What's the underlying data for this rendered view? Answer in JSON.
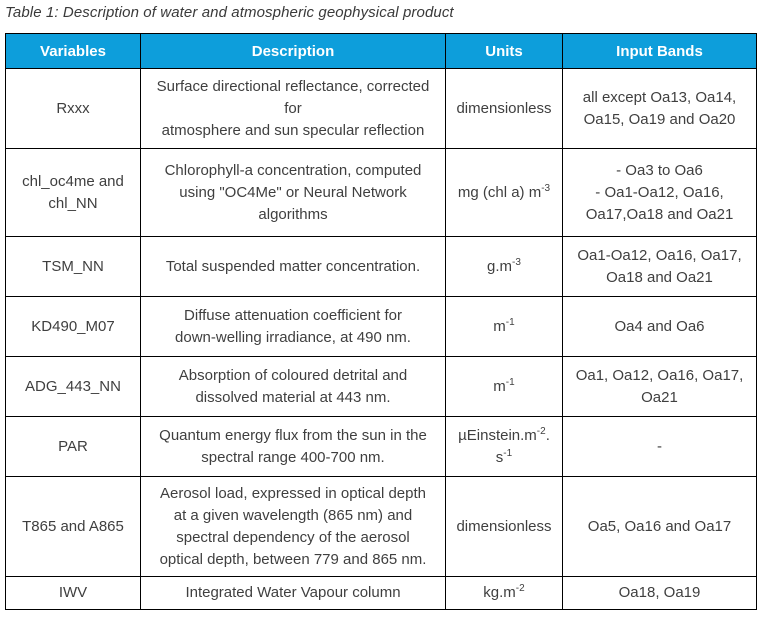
{
  "title": "Table 1: Description of water and atmospheric geophysical product",
  "colors": {
    "header_bg": "#0d9edb",
    "header_text": "#ffffff",
    "body_text": "#3f3f3f",
    "border": "#000000"
  },
  "columns": [
    "Variables",
    "Description",
    "Units",
    "Input Bands"
  ],
  "rows": [
    {
      "variable": [
        "Rxxx"
      ],
      "description": [
        "Surface directional reflectance, corrected",
        "for",
        "atmosphere and sun specular reflection"
      ],
      "units": [
        {
          "text": "dimensionless"
        }
      ],
      "input_bands": [
        "all except Oa13, Oa14,",
        "Oa15, Oa19 and Oa20"
      ]
    },
    {
      "variable": [
        "chl_oc4me and",
        "chl_NN"
      ],
      "description": [
        "Chlorophyll-a concentration, computed",
        "using \"OC4Me\" or Neural Network",
        "algorithms"
      ],
      "units": [
        {
          "text": "mg (chl a) m"
        },
        {
          "text": "-3",
          "sup": true
        }
      ],
      "input_bands": [
        "- Oa3 to Oa6",
        "- Oa1-Oa12, Oa16,",
        "Oa17,Oa18 and Oa21"
      ]
    },
    {
      "variable": [
        "TSM_NN"
      ],
      "description": [
        "Total suspended matter concentration."
      ],
      "units": [
        {
          "text": "g.m"
        },
        {
          "text": "-3",
          "sup": true
        }
      ],
      "input_bands": [
        "Oa1-Oa12, Oa16, Oa17,",
        "Oa18 and Oa21"
      ]
    },
    {
      "variable": [
        "KD490_M07"
      ],
      "description": [
        "Diffuse attenuation coefficient for",
        "down-welling irradiance, at 490 nm."
      ],
      "units": [
        {
          "text": "m"
        },
        {
          "text": "-1",
          "sup": true
        }
      ],
      "input_bands": [
        "Oa4 and Oa6"
      ]
    },
    {
      "variable": [
        "ADG_443_NN"
      ],
      "description": [
        "Absorption of coloured detrital and",
        "dissolved material at 443 nm."
      ],
      "units": [
        {
          "text": "m"
        },
        {
          "text": "-1",
          "sup": true
        }
      ],
      "input_bands": [
        "Oa1, Oa12, Oa16, Oa17,",
        "Oa21"
      ]
    },
    {
      "variable": [
        "PAR"
      ],
      "description": [
        "Quantum energy flux from the sun in the",
        "spectral range 400-700 nm."
      ],
      "units": [
        {
          "text": "µEinstein.m"
        },
        {
          "text": "-2",
          "sup": true
        },
        {
          "text": "."
        },
        {
          "br": true
        },
        {
          "text": "s"
        },
        {
          "text": "-1",
          "sup": true
        }
      ],
      "input_bands": [
        "-"
      ]
    },
    {
      "variable": [
        "T865 and A865"
      ],
      "description": [
        "Aerosol load, expressed in optical depth",
        "at a given wavelength (865 nm) and",
        "spectral dependency of the aerosol",
        "optical depth, between 779 and 865 nm."
      ],
      "units": [
        {
          "text": "dimensionless"
        }
      ],
      "input_bands": [
        "Oa5, Oa16 and Oa17"
      ]
    },
    {
      "variable": [
        "IWV"
      ],
      "description": [
        "Integrated Water Vapour column"
      ],
      "units": [
        {
          "text": "kg.m"
        },
        {
          "text": "-2",
          "sup": true
        }
      ],
      "input_bands": [
        "Oa18, Oa19"
      ]
    }
  ]
}
